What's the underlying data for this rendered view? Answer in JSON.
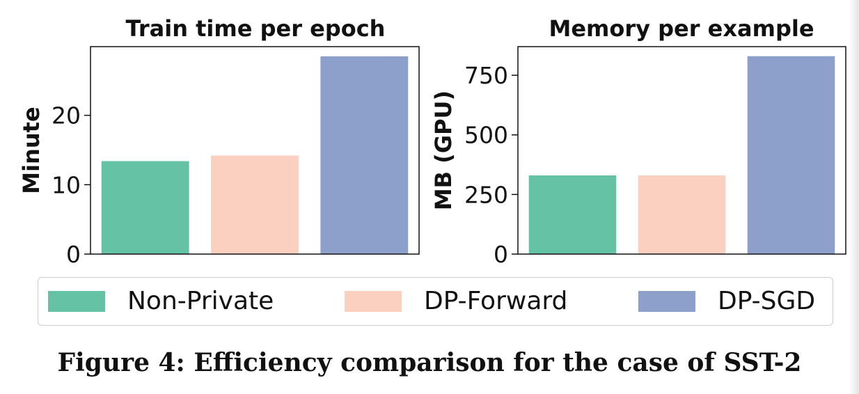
{
  "chart_data": [
    {
      "type": "bar",
      "title": "Train time per epoch",
      "xlabel": "",
      "ylabel": "Minute",
      "categories": [
        "Non-Private",
        "DP-Forward",
        "DP-SGD"
      ],
      "values": [
        13.4,
        14.2,
        28.5
      ],
      "ylim": [
        0,
        29.9
      ],
      "yticks": [
        0,
        10,
        20
      ],
      "colors": [
        "#66c2a5",
        "#fcd0c0",
        "#8da0cb"
      ],
      "grid": false
    },
    {
      "type": "bar",
      "title": "Memory per example",
      "xlabel": "",
      "ylabel": "MB (GPU)",
      "categories": [
        "Non-Private",
        "DP-Forward",
        "DP-SGD"
      ],
      "values": [
        330,
        330,
        830
      ],
      "ylim": [
        0,
        870
      ],
      "yticks": [
        0,
        250,
        500,
        750
      ],
      "colors": [
        "#66c2a5",
        "#fcd0c0",
        "#8da0cb"
      ],
      "grid": false
    }
  ],
  "legend": {
    "placement": "bottom",
    "entries": [
      {
        "label": "Non-Private",
        "color": "#66c2a5"
      },
      {
        "label": "DP-Forward",
        "color": "#fcd0c0"
      },
      {
        "label": "DP-SGD",
        "color": "#8da0cb"
      }
    ]
  },
  "caption": "Figure 4: Efficiency comparison for the case of SST-2"
}
